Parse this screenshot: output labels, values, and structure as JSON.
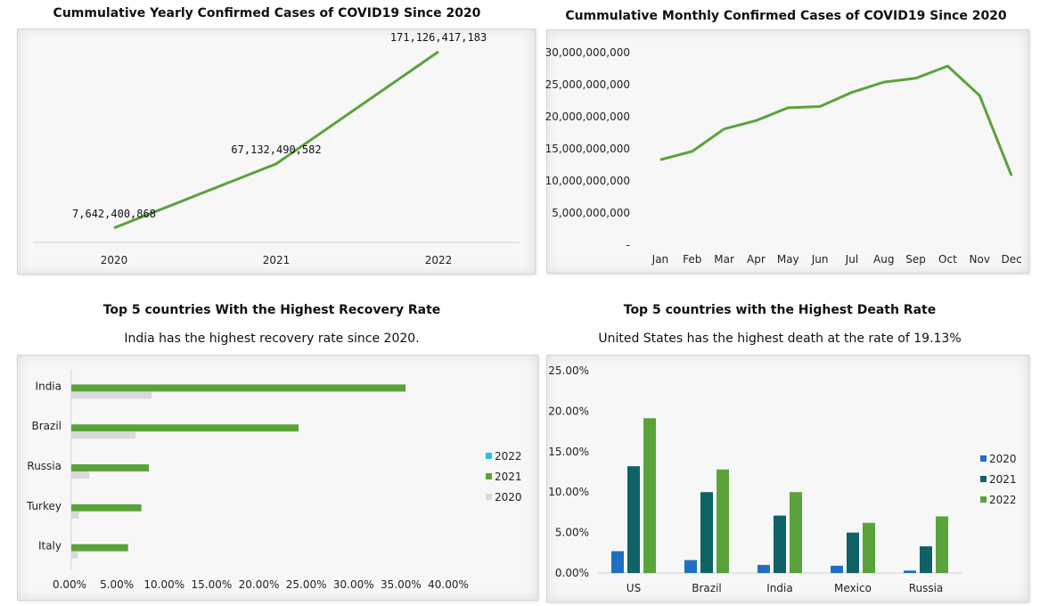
{
  "chart_data": [
    {
      "type": "line",
      "title": "Cummulative Yearly Confirmed Cases of COVID19 Since 2020",
      "categories": [
        "2020",
        "2021",
        "2022"
      ],
      "values": [
        7642400868,
        67132490582,
        171126417183
      ],
      "data_labels": [
        "7,642,400,868",
        "67,132,490,582",
        "171,126,417,183"
      ],
      "color": "#5aa33b",
      "grid": false
    },
    {
      "type": "line",
      "title": "Cummulative Monthly Confirmed Cases of COVID19 Since 2020",
      "categories": [
        "Jan",
        "Feb",
        "Mar",
        "Apr",
        "May",
        "Jun",
        "Jul",
        "Aug",
        "Sep",
        "Oct",
        "Nov",
        "Dec"
      ],
      "values": [
        13300000000,
        14600000000,
        18100000000,
        19400000000,
        21400000000,
        21600000000,
        23800000000,
        25400000000,
        26000000000,
        27900000000,
        23300000000,
        10800000000
      ],
      "ylim": [
        0,
        30000000000
      ],
      "yticks": [
        "-",
        "5,000,000,000",
        "10,000,000,000",
        "15,000,000,000",
        "20,000,000,000",
        "25,000,000,000",
        "30,000,000,000"
      ],
      "color": "#5aa33b",
      "grid": false
    },
    {
      "type": "bar",
      "orientation": "horizontal",
      "title": "Top 5 countries With the Highest Recovery Rate",
      "subtitle": "India has the highest recovery rate since 2020.",
      "categories": [
        "India",
        "Brazil",
        "Russia",
        "Turkey",
        "Italy"
      ],
      "series": [
        {
          "name": "2022",
          "values": [
            0,
            0,
            0,
            0,
            0
          ],
          "color": "#22c4d4"
        },
        {
          "name": "2021",
          "values": [
            35.3,
            24.0,
            8.2,
            7.4,
            6.0
          ],
          "color": "#5aa33b"
        },
        {
          "name": "2020",
          "values": [
            8.5,
            6.8,
            1.9,
            0.8,
            0.7
          ],
          "color": "#d9d9d9"
        }
      ],
      "xlim": [
        0,
        40
      ],
      "xticks": [
        "0.00%",
        "5.00%",
        "10.00%",
        "15.00%",
        "20.00%",
        "25.00%",
        "30.00%",
        "35.00%",
        "40.00%"
      ],
      "legend": "right"
    },
    {
      "type": "bar",
      "title": "Top 5 countries with the Highest Death Rate",
      "subtitle": "United States has the highest death at the rate of 19.13%",
      "categories": [
        "US",
        "Brazil",
        "India",
        "Mexico",
        "Russia"
      ],
      "series": [
        {
          "name": "2020",
          "values": [
            2.7,
            1.6,
            1.0,
            0.9,
            0.3
          ],
          "color": "#1f6fc5"
        },
        {
          "name": "2021",
          "values": [
            13.2,
            10.0,
            7.1,
            5.0,
            3.3
          ],
          "color": "#0f6266"
        },
        {
          "name": "2022",
          "values": [
            19.13,
            12.8,
            10.0,
            6.2,
            7.0
          ],
          "color": "#5aa33b"
        }
      ],
      "ylim": [
        0,
        25
      ],
      "yticks": [
        "0.00%",
        "5.00%",
        "10.00%",
        "15.00%",
        "20.00%",
        "25.00%"
      ],
      "legend": "right"
    }
  ]
}
